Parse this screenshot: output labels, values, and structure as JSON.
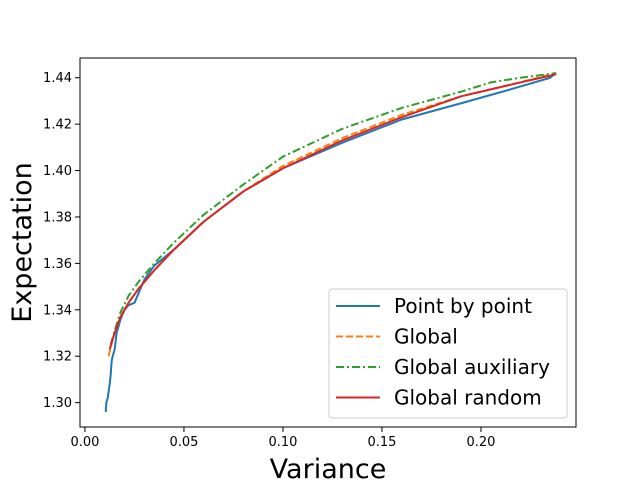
{
  "chart_data": {
    "type": "line",
    "title": "",
    "xlabel": "Variance",
    "ylabel": "Expectation",
    "xlim": [
      -0.0025,
      0.248
    ],
    "ylim": [
      1.2895,
      1.4485
    ],
    "xticks": [
      0.0,
      0.05,
      0.1,
      0.15,
      0.2
    ],
    "xtick_labels": [
      "0.00",
      "0.05",
      "0.10",
      "0.15",
      "0.20"
    ],
    "yticks": [
      1.3,
      1.32,
      1.34,
      1.36,
      1.38,
      1.4,
      1.42,
      1.44
    ],
    "ytick_labels": [
      "1.30",
      "1.32",
      "1.34",
      "1.36",
      "1.38",
      "1.40",
      "1.42",
      "1.44"
    ],
    "grid": false,
    "legend_position": "lower-right",
    "series": [
      {
        "name": "Point by point",
        "color": "#1f77b4",
        "dash": "solid",
        "x": [
          0.0105,
          0.0108,
          0.0115,
          0.012,
          0.0125,
          0.013,
          0.0135,
          0.014,
          0.015,
          0.016,
          0.017,
          0.018,
          0.02,
          0.022,
          0.025,
          0.026,
          0.03,
          0.035,
          0.045,
          0.06,
          0.08,
          0.1,
          0.13,
          0.16,
          0.19,
          0.215,
          0.235,
          0.236,
          0.2365
        ],
        "y": [
          1.296,
          1.3,
          1.302,
          1.305,
          1.308,
          1.312,
          1.318,
          1.32,
          1.323,
          1.33,
          1.333,
          1.336,
          1.34,
          1.342,
          1.343,
          1.345,
          1.353,
          1.359,
          1.366,
          1.378,
          1.391,
          1.401,
          1.412,
          1.422,
          1.429,
          1.435,
          1.44,
          1.441,
          1.4405
        ]
      },
      {
        "name": "Global",
        "color": "#ff7f0e",
        "dash": "dashed",
        "x": [
          0.012,
          0.013,
          0.015,
          0.018,
          0.022,
          0.027,
          0.035,
          0.045,
          0.06,
          0.08,
          0.1,
          0.13,
          0.16,
          0.19,
          0.215,
          0.238
        ],
        "y": [
          1.32,
          1.324,
          1.33,
          1.337,
          1.343,
          1.349,
          1.357,
          1.366,
          1.378,
          1.391,
          1.402,
          1.414,
          1.424,
          1.432,
          1.437,
          1.442
        ]
      },
      {
        "name": "Global auxiliary",
        "color": "#2ca02c",
        "dash": "dashdot",
        "x": [
          0.013,
          0.015,
          0.018,
          0.022,
          0.027,
          0.035,
          0.045,
          0.06,
          0.08,
          0.1,
          0.13,
          0.16,
          0.19,
          0.205,
          0.22,
          0.238
        ],
        "y": [
          1.325,
          1.331,
          1.339,
          1.346,
          1.352,
          1.36,
          1.369,
          1.381,
          1.394,
          1.406,
          1.418,
          1.427,
          1.434,
          1.438,
          1.44,
          1.442
        ]
      },
      {
        "name": "Global random",
        "color": "#d62728",
        "dash": "solid",
        "x": [
          0.0125,
          0.0135,
          0.015,
          0.018,
          0.022,
          0.027,
          0.035,
          0.045,
          0.06,
          0.08,
          0.1,
          0.13,
          0.16,
          0.19,
          0.215,
          0.238
        ],
        "y": [
          1.323,
          1.326,
          1.33,
          1.337,
          1.343,
          1.349,
          1.357,
          1.366,
          1.378,
          1.391,
          1.401,
          1.413,
          1.423,
          1.432,
          1.437,
          1.4415
        ]
      }
    ]
  }
}
